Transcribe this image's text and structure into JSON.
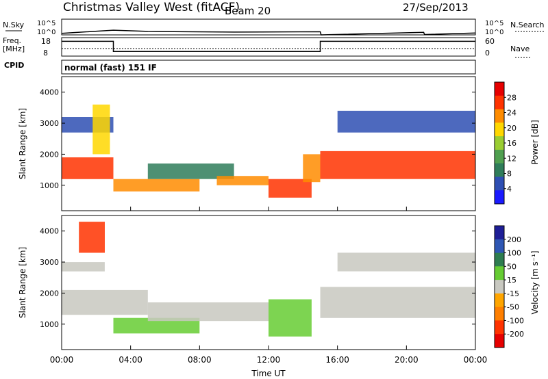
{
  "header": {
    "station": "Christmas Valley West (fitACF)",
    "beam": "Beam 20",
    "date": "27/Sep/2013"
  },
  "noise_panel": {
    "left_label": "N.Sky",
    "left_ticks": [
      "10^5",
      "10^0"
    ],
    "right_label": "N.Search",
    "right_ticks": [
      "10^5",
      "10^0"
    ]
  },
  "freq_panel": {
    "left_label_1": "Freq.",
    "left_label_2": "[MHz]",
    "left_ticks": [
      "18",
      "8"
    ],
    "right_label": "Nave",
    "right_ticks": [
      "60",
      "0"
    ]
  },
  "cpid": {
    "label": "CPID",
    "value": "normal (fast) 151 IF"
  },
  "power_panel": {
    "ylabel": "Slant Range [km]",
    "yticks": [
      "4000",
      "3000",
      "2000",
      "1000"
    ],
    "colorbar_label": "Power [dB]",
    "colorbar_ticks": [
      "28",
      "24",
      "20",
      "16",
      "12",
      "8",
      "4"
    ],
    "colors": [
      "#1a1aff",
      "#2e4fb3",
      "#2f7d5a",
      "#50a050",
      "#9acd32",
      "#ffd700",
      "#ff8c00",
      "#ff3300",
      "#e60000"
    ]
  },
  "velocity_panel": {
    "ylabel": "Slant Range [km]",
    "yticks": [
      "4000",
      "3000",
      "2000",
      "1000"
    ],
    "colorbar_label": "Velocity [m s⁻¹]",
    "colorbar_ticks": [
      "200",
      "100",
      "50",
      "15",
      "-15",
      "-50",
      "-100",
      "-200"
    ],
    "colors": [
      "#1e1e96",
      "#2f57b4",
      "#2e7d50",
      "#66cc33",
      "#c8c8c0",
      "#ffa500",
      "#ff7f00",
      "#ff3300",
      "#e60000"
    ]
  },
  "xaxis": {
    "label": "Time UT",
    "ticks": [
      "00:00",
      "04:00",
      "08:00",
      "12:00",
      "16:00",
      "20:00",
      "00:00"
    ]
  },
  "chart_data": [
    {
      "type": "line",
      "name": "noise",
      "x_hours": [
        0,
        3,
        5,
        10,
        15,
        15.05,
        21,
        21.05,
        24
      ],
      "y_log10": [
        0.5,
        1.5,
        1.1,
        0.9,
        1.0,
        0.0,
        0.8,
        0.1,
        0.6
      ]
    },
    {
      "type": "line",
      "name": "frequency",
      "x_hours": [
        0,
        3,
        3,
        15,
        15,
        21,
        21,
        24
      ],
      "y_mhz": [
        16,
        16,
        10.5,
        10.5,
        16,
        16,
        16,
        16
      ],
      "xlim": [
        0,
        24
      ],
      "ylim": [
        8,
        18
      ]
    },
    {
      "type": "heatmap",
      "name": "power",
      "xlim": [
        0,
        24
      ],
      "ylim": [
        180,
        4500
      ],
      "clim": [
        0,
        30
      ],
      "regions": [
        {
          "x": [
            0,
            3
          ],
          "y": [
            1200,
            1900
          ],
          "value": 24
        },
        {
          "x": [
            0,
            3
          ],
          "y": [
            2700,
            3200
          ],
          "value": 6
        },
        {
          "x": [
            1.8,
            2.8
          ],
          "y": [
            2000,
            3600
          ],
          "value": 18
        },
        {
          "x": [
            3,
            8
          ],
          "y": [
            800,
            1200
          ],
          "value": 22
        },
        {
          "x": [
            5,
            10
          ],
          "y": [
            1200,
            1700
          ],
          "value": 8
        },
        {
          "x": [
            9,
            12
          ],
          "y": [
            1000,
            1300
          ],
          "value": 20
        },
        {
          "x": [
            12,
            14.5
          ],
          "y": [
            600,
            1200
          ],
          "value": 26
        },
        {
          "x": [
            14,
            15
          ],
          "y": [
            1100,
            2000
          ],
          "value": 20
        },
        {
          "x": [
            15,
            24
          ],
          "y": [
            1200,
            2100
          ],
          "value": 26
        },
        {
          "x": [
            16,
            24
          ],
          "y": [
            2700,
            3400
          ],
          "value": 5
        }
      ]
    },
    {
      "type": "heatmap",
      "name": "velocity",
      "xlim": [
        0,
        24
      ],
      "ylim": [
        180,
        4500
      ],
      "clim": [
        -200,
        200
      ],
      "regions": [
        {
          "x": [
            0,
            5
          ],
          "y": [
            1300,
            2100
          ],
          "value": 0
        },
        {
          "x": [
            0,
            2.5
          ],
          "y": [
            2700,
            3000
          ],
          "value": 0
        },
        {
          "x": [
            1,
            2.5
          ],
          "y": [
            3300,
            4300
          ],
          "value": -150
        },
        {
          "x": [
            3,
            8
          ],
          "y": [
            700,
            1200
          ],
          "value": 40
        },
        {
          "x": [
            5,
            12
          ],
          "y": [
            1100,
            1700
          ],
          "value": 0
        },
        {
          "x": [
            12,
            14.5
          ],
          "y": [
            600,
            1800
          ],
          "value": 40
        },
        {
          "x": [
            15,
            24
          ],
          "y": [
            1200,
            2200
          ],
          "value": 0
        },
        {
          "x": [
            16,
            24
          ],
          "y": [
            2700,
            3300
          ],
          "value": 0
        }
      ]
    }
  ]
}
